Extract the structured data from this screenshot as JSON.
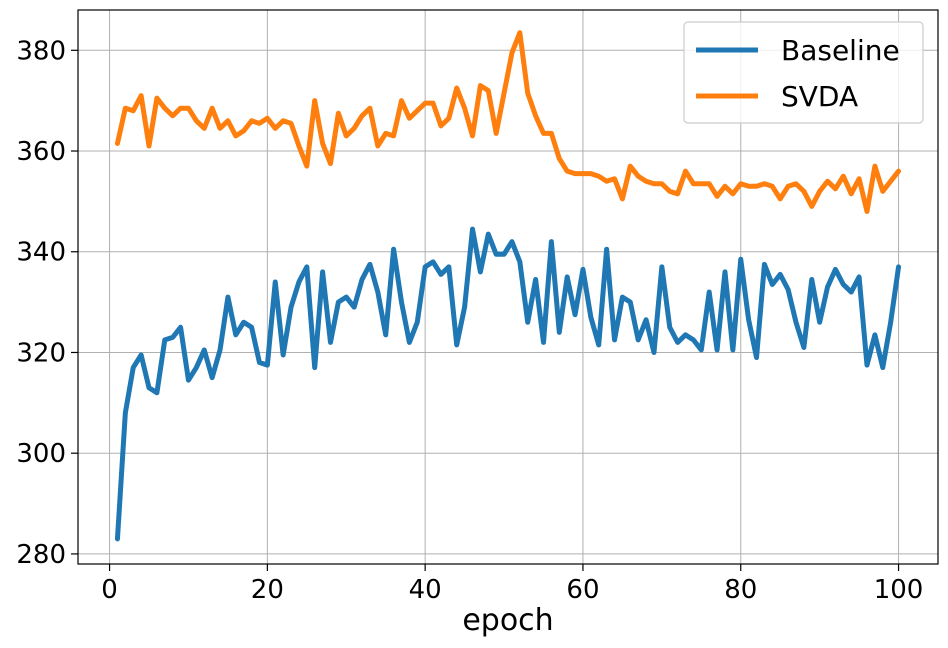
{
  "chart_data": {
    "type": "line",
    "title": "",
    "xlabel": "epoch",
    "ylabel": "",
    "xlim": [
      -4,
      105
    ],
    "ylim": [
      278,
      388
    ],
    "xticks": [
      0,
      20,
      40,
      60,
      80,
      100
    ],
    "yticks": [
      280,
      300,
      320,
      340,
      360,
      380
    ],
    "grid": true,
    "legend_position": "top-right",
    "x": [
      1,
      2,
      3,
      4,
      5,
      6,
      7,
      8,
      9,
      10,
      11,
      12,
      13,
      14,
      15,
      16,
      17,
      18,
      19,
      20,
      21,
      22,
      23,
      24,
      25,
      26,
      27,
      28,
      29,
      30,
      31,
      32,
      33,
      34,
      35,
      36,
      37,
      38,
      39,
      40,
      41,
      42,
      43,
      44,
      45,
      46,
      47,
      48,
      49,
      50,
      51,
      52,
      53,
      54,
      55,
      56,
      57,
      58,
      59,
      60,
      61,
      62,
      63,
      64,
      65,
      66,
      67,
      68,
      69,
      70,
      71,
      72,
      73,
      74,
      75,
      76,
      77,
      78,
      79,
      80,
      81,
      82,
      83,
      84,
      85,
      86,
      87,
      88,
      89,
      90,
      91,
      92,
      93,
      94,
      95,
      96,
      97,
      98,
      99,
      100
    ],
    "series": [
      {
        "name": "Baseline",
        "color": "#1f77b4",
        "values": [
          283.0,
          308.0,
          317.0,
          319.5,
          313.0,
          312.0,
          322.5,
          323.0,
          325.0,
          314.5,
          317.0,
          320.5,
          315.0,
          320.5,
          331.0,
          323.5,
          326.0,
          325.0,
          318.0,
          317.5,
          334.0,
          319.5,
          329.0,
          334.0,
          337.0,
          317.0,
          336.0,
          322.0,
          330.0,
          331.0,
          329.0,
          334.5,
          337.5,
          332.0,
          323.5,
          340.5,
          330.0,
          322.0,
          326.0,
          337.0,
          338.0,
          335.5,
          337.0,
          321.5,
          329.0,
          344.5,
          336.0,
          343.5,
          339.5,
          339.5,
          342.0,
          338.0,
          326.0,
          334.5,
          322.0,
          342.0,
          324.0,
          335.0,
          327.5,
          336.5,
          327.0,
          321.5,
          340.5,
          322.5,
          331.0,
          330.0,
          322.5,
          326.5,
          320.0,
          337.0,
          325.0,
          322.0,
          323.5,
          322.5,
          320.5,
          332.0,
          320.5,
          336.0,
          320.5,
          338.5,
          326.5,
          319.0,
          337.5,
          333.5,
          335.5,
          332.5,
          326.0,
          321.0,
          334.5,
          326.0,
          333.0,
          336.5,
          333.5,
          332.0,
          335.0,
          317.5,
          323.5,
          317.0,
          326.0,
          337.0
        ]
      },
      {
        "name": "SVDA",
        "color": "#ff7f0e",
        "values": [
          361.5,
          368.5,
          368.0,
          371.0,
          361.0,
          370.5,
          368.5,
          367.0,
          368.5,
          368.5,
          366.0,
          364.5,
          368.5,
          364.5,
          366.0,
          363.0,
          364.0,
          366.0,
          365.5,
          366.5,
          364.5,
          366.0,
          365.5,
          361.0,
          357.0,
          370.0,
          361.5,
          357.5,
          367.5,
          363.0,
          364.5,
          367.0,
          368.5,
          361.0,
          363.5,
          363.0,
          370.0,
          366.5,
          368.0,
          369.5,
          369.5,
          365.0,
          366.5,
          372.5,
          368.5,
          363.0,
          373.0,
          372.0,
          363.5,
          371.5,
          379.5,
          383.5,
          371.5,
          367.0,
          363.5,
          363.5,
          358.5,
          356.0,
          355.5,
          355.5,
          355.5,
          355.0,
          354.0,
          354.5,
          350.5,
          357.0,
          355.0,
          354.0,
          353.5,
          353.5,
          352.0,
          351.5,
          356.0,
          353.5,
          353.5,
          353.5,
          351.0,
          353.0,
          351.5,
          353.5,
          353.0,
          353.0,
          353.5,
          353.0,
          350.5,
          353.0,
          353.5,
          352.0,
          349.0,
          352.0,
          354.0,
          352.5,
          355.0,
          351.5,
          354.5,
          348.0,
          357.0,
          352.0,
          354.0,
          356.0
        ]
      }
    ]
  }
}
